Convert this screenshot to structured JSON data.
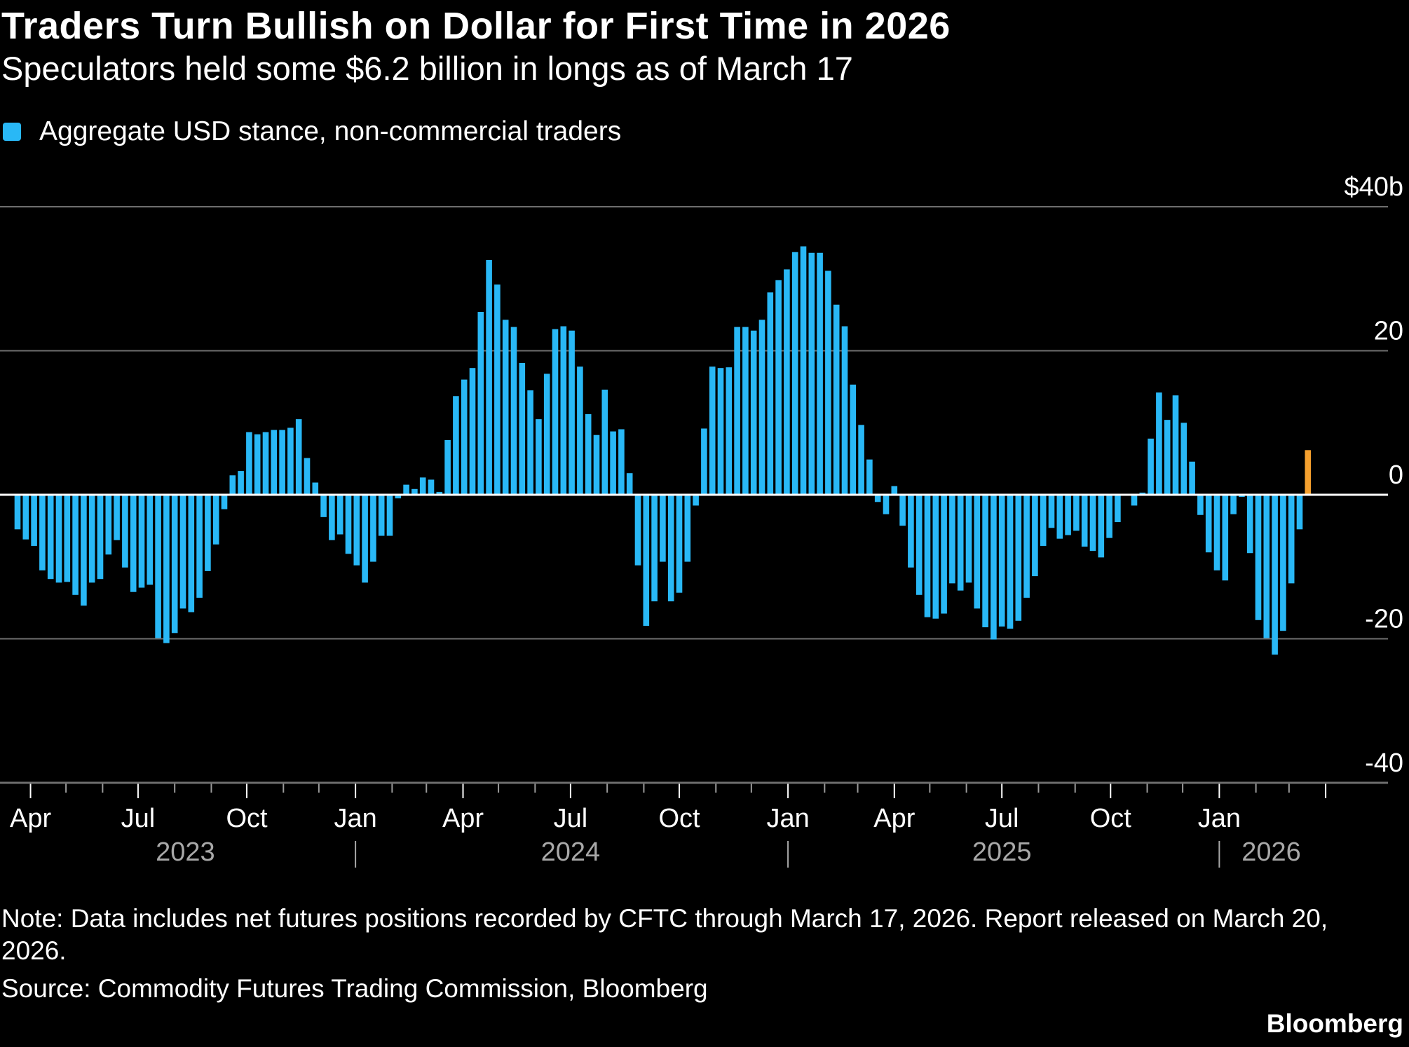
{
  "title": "Traders Turn Bullish on Dollar for First Time in 2026",
  "subtitle": "Speculators held some $6.2 billion in longs as of March 17",
  "note": "Note: Data includes net futures positions recorded by CFTC through March 17, 2026. Report released on March 20, 2026.",
  "source": "Source: Commodity Futures Trading Commission, Bloomberg",
  "logo": "Bloomberg",
  "colors": {
    "background": "#000000",
    "bar": "#29b8f6",
    "latest_bar": "#f5a02e",
    "grid": "#6e6e6e",
    "zero_line": "#ffffff",
    "year_label": "#a8a8a8"
  },
  "chart_data": {
    "type": "bar",
    "legend": {
      "entries": [
        {
          "name": "Aggregate USD stance, non-commercial traders",
          "color": "#29b8f6"
        }
      ],
      "placement": "top-left"
    },
    "frequency": "weekly",
    "last_date": "2026-03-17",
    "unit": "USD billions",
    "ylim": [
      -40,
      40
    ],
    "y_ticks": [
      {
        "value": 40,
        "label": "$40b"
      },
      {
        "value": 20,
        "label": "20"
      },
      {
        "value": 0,
        "label": "0"
      },
      {
        "value": -20,
        "label": "-20"
      },
      {
        "value": -40,
        "label": "-40"
      }
    ],
    "grid": true,
    "highlight_last": true,
    "values": [
      -4.8,
      -6.2,
      -7.1,
      -10.5,
      -11.7,
      -12.2,
      -12.1,
      -13.9,
      -15.4,
      -12.2,
      -11.7,
      -8.3,
      -6.3,
      -10.1,
      -13.5,
      -12.9,
      -12.5,
      -19.9,
      -20.6,
      -19.2,
      -15.8,
      -16.3,
      -14.3,
      -10.6,
      -6.9,
      -2.0,
      2.7,
      3.3,
      8.7,
      8.4,
      8.7,
      9.0,
      9.0,
      9.3,
      10.5,
      5.1,
      1.7,
      -3.1,
      -6.3,
      -5.5,
      -8.2,
      -9.8,
      -12.2,
      -9.3,
      -5.7,
      -5.7,
      -0.5,
      1.4,
      0.8,
      2.4,
      2.1,
      0.4,
      7.6,
      13.7,
      16.0,
      17.6,
      25.4,
      32.6,
      29.2,
      24.3,
      23.3,
      18.3,
      14.5,
      10.5,
      16.8,
      23.0,
      23.4,
      22.8,
      17.8,
      11.2,
      8.3,
      14.6,
      8.8,
      9.1,
      3.0,
      -9.8,
      -18.2,
      -14.8,
      -9.3,
      -14.8,
      -13.6,
      -9.3,
      -1.5,
      9.2,
      17.8,
      17.6,
      17.7,
      23.3,
      23.3,
      22.8,
      24.3,
      28.1,
      29.8,
      31.3,
      33.7,
      34.5,
      33.6,
      33.6,
      31.1,
      26.4,
      23.4,
      15.3,
      9.7,
      4.9,
      -1.0,
      -2.7,
      1.2,
      -4.3,
      -10.1,
      -13.9,
      -17.0,
      -17.2,
      -16.5,
      -12.3,
      -13.3,
      -12.2,
      -15.8,
      -18.4,
      -20.1,
      -18.3,
      -18.6,
      -17.5,
      -14.3,
      -11.3,
      -7.1,
      -4.6,
      -6.1,
      -5.6,
      -5.0,
      -7.2,
      -7.8,
      -8.7,
      -6.0,
      -3.8,
      -0.1,
      -1.5,
      0.3,
      7.8,
      14.2,
      10.4,
      13.8,
      10.0,
      4.6,
      -2.8,
      -8.0,
      -10.5,
      -11.9,
      -2.7,
      -0.3,
      -8.1,
      -17.4,
      -19.9,
      -22.2,
      -18.9,
      -12.3,
      -4.8,
      6.2
    ],
    "x_ticks": [
      {
        "label": "Apr",
        "date": "2023-04-01"
      },
      {
        "label": "Jul",
        "date": "2023-07-01"
      },
      {
        "label": "Oct",
        "date": "2023-10-01"
      },
      {
        "label": "Jan",
        "date": "2024-01-01"
      },
      {
        "label": "Apr",
        "date": "2024-04-01"
      },
      {
        "label": "Jul",
        "date": "2024-07-01"
      },
      {
        "label": "Oct",
        "date": "2024-10-01"
      },
      {
        "label": "Jan",
        "date": "2025-01-01"
      },
      {
        "label": "Apr",
        "date": "2025-04-01"
      },
      {
        "label": "Jul",
        "date": "2025-07-01"
      },
      {
        "label": "Oct",
        "date": "2025-10-01"
      },
      {
        "label": "Jan",
        "date": "2026-01-01"
      }
    ],
    "year_labels": [
      {
        "label": "2023",
        "center_date": "2023-08-10"
      },
      {
        "label": "2024",
        "center_date": "2024-07-01"
      },
      {
        "label": "2025",
        "center_date": "2025-07-01"
      },
      {
        "label": "2026",
        "center_date": "2026-02-14"
      }
    ],
    "year_separators": [
      "2024-01-01",
      "2025-01-01",
      "2026-01-01"
    ]
  }
}
